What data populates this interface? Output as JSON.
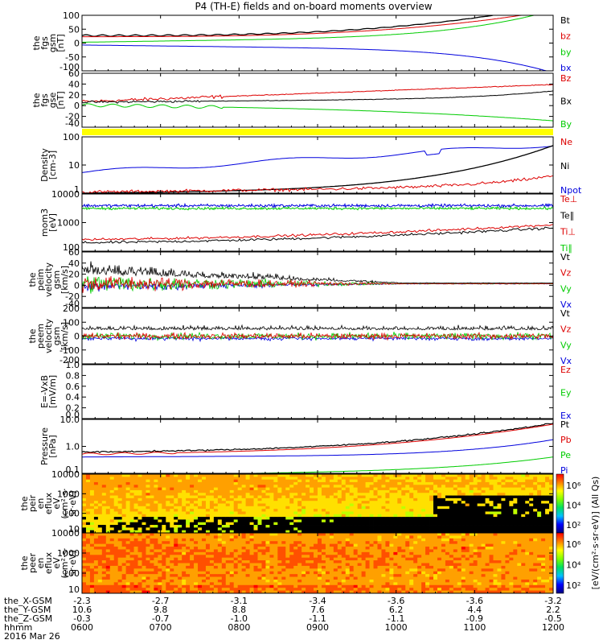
{
  "title": "P4 (TH-E) fields and on-board moments overview",
  "date_label": "2016 Mar 26",
  "colors": {
    "black": "#000000",
    "red": "#dd0000",
    "green": "#00cc00",
    "blue": "#0000dd",
    "yellow": "#ffff00"
  },
  "chart_data": [
    {
      "id": "fgs_gsm",
      "type": "line",
      "ylabel": [
        "the",
        "fgs",
        "gsm",
        "[nT]"
      ],
      "yticks": [
        "100",
        "50",
        "0",
        "-50",
        "-100"
      ],
      "ylim": [
        -100,
        100
      ],
      "series": [
        {
          "name": "Bt",
          "color": "black"
        },
        {
          "name": "bz",
          "color": "red"
        },
        {
          "name": "by",
          "color": "green"
        },
        {
          "name": "bx",
          "color": "blue"
        }
      ]
    },
    {
      "id": "fgs_gse",
      "type": "line",
      "ylabel": [
        "the",
        "fgs",
        "gse",
        "[nT]"
      ],
      "yticks": [
        "60",
        "40",
        "20",
        "0",
        "-20",
        "-40"
      ],
      "ylim": [
        -50,
        60
      ],
      "series": [
        {
          "name": "Bz",
          "color": "red"
        },
        {
          "name": "Bx",
          "color": "black"
        },
        {
          "name": "By",
          "color": "green"
        }
      ]
    },
    {
      "id": "density",
      "type": "line",
      "ylabel": [
        "Density",
        "[cm-3]"
      ],
      "yticks": [
        "100",
        "10",
        "1"
      ],
      "log": true,
      "series": [
        {
          "name": "Ne",
          "color": "red"
        },
        {
          "name": "Ni",
          "color": "black"
        },
        {
          "name": "Npot",
          "color": "blue"
        }
      ]
    },
    {
      "id": "temperature",
      "type": "line",
      "ylabel": [
        "mom3",
        "[eV]"
      ],
      "yticks": [
        "10000",
        "1000",
        "100"
      ],
      "log": true,
      "series": [
        {
          "name": "Te⊥",
          "color": "red"
        },
        {
          "name": "Te∥",
          "color": "black"
        },
        {
          "name": "Ti⊥",
          "color": "red"
        },
        {
          "name": "Ti∥",
          "color": "green"
        }
      ]
    },
    {
      "id": "peim_velocity",
      "type": "line",
      "ylabel": [
        "the",
        "peim",
        "velocity",
        "gsm",
        "[km/s]"
      ],
      "yticks": [
        "60",
        "40",
        "20",
        "0",
        "-20",
        "-40"
      ],
      "ylim": [
        -45,
        60
      ],
      "series": [
        {
          "name": "Vt",
          "color": "black"
        },
        {
          "name": "Vz",
          "color": "red"
        },
        {
          "name": "Vy",
          "color": "green"
        },
        {
          "name": "Vx",
          "color": "blue"
        }
      ]
    },
    {
      "id": "peem_velocity",
      "type": "line",
      "ylabel": [
        "the",
        "peem",
        "velocity",
        "gsm",
        "[km/s]"
      ],
      "yticks": [
        "200",
        "100",
        "0",
        "-100",
        "-200"
      ],
      "ylim": [
        -200,
        200
      ],
      "series": [
        {
          "name": "Vt",
          "color": "black"
        },
        {
          "name": "Vz",
          "color": "red"
        },
        {
          "name": "Vy",
          "color": "green"
        },
        {
          "name": "Vx",
          "color": "blue"
        }
      ]
    },
    {
      "id": "efield",
      "type": "line",
      "ylabel": [
        "E=-VxB",
        "[mV/m]"
      ],
      "yticks": [
        "1.0",
        "0.8",
        "0.6",
        "0.4",
        "0.2",
        "0.0"
      ],
      "ylim": [
        0,
        1
      ],
      "series": [
        {
          "name": "Ez",
          "color": "red"
        },
        {
          "name": "Ey",
          "color": "green"
        },
        {
          "name": "Ex",
          "color": "blue"
        }
      ]
    },
    {
      "id": "pressure",
      "type": "line",
      "ylabel": [
        "Pressure",
        "[nPa]"
      ],
      "yticks": [
        "10.0",
        "1.0",
        "0.1"
      ],
      "log": true,
      "series": [
        {
          "name": "Pt",
          "color": "black"
        },
        {
          "name": "Pb",
          "color": "red"
        },
        {
          "name": "Pe",
          "color": "green"
        },
        {
          "name": "Pi",
          "color": "blue"
        }
      ]
    },
    {
      "id": "peir_spec",
      "type": "heatmap",
      "ylabel": [
        "the",
        "peir",
        "en",
        "eflux",
        "eV",
        "(cm²·s·",
        "sr·eV)"
      ],
      "yticks": [
        "10000",
        "1000",
        "100",
        "10"
      ]
    },
    {
      "id": "peer_spec",
      "type": "heatmap",
      "ylabel": [
        "the",
        "peer",
        "en",
        "eflux",
        "eV",
        "(cm²·s·",
        "sr·eV)"
      ],
      "yticks": [
        "10000",
        "1000",
        "100",
        "10"
      ]
    }
  ],
  "colorbars": [
    {
      "ticks": [
        "10⁶",
        "10⁴",
        "10²"
      ],
      "label": "[eV/(cm²·s·sr·eV)] (All Qs)"
    },
    {
      "ticks": [
        "10⁶",
        "10⁴",
        "10²"
      ]
    }
  ],
  "ephemeris": {
    "row_labels": [
      "the_X-GSM",
      "the_Y-GSM",
      "the_Z-GSM",
      "hhmm"
    ],
    "columns": [
      [
        "-2.3",
        "10.6",
        "-0.3",
        "0600"
      ],
      [
        "-2.7",
        "9.8",
        "-0.7",
        "0700"
      ],
      [
        "-3.1",
        "8.8",
        "-1.0",
        "0800"
      ],
      [
        "-3.4",
        "7.6",
        "-1.1",
        "0900"
      ],
      [
        "-3.6",
        "6.2",
        "-1.1",
        "1000"
      ],
      [
        "-3.6",
        "4.4",
        "-0.9",
        "1100"
      ],
      [
        "-3.2",
        "2.2",
        "-0.5",
        "1200"
      ]
    ]
  }
}
